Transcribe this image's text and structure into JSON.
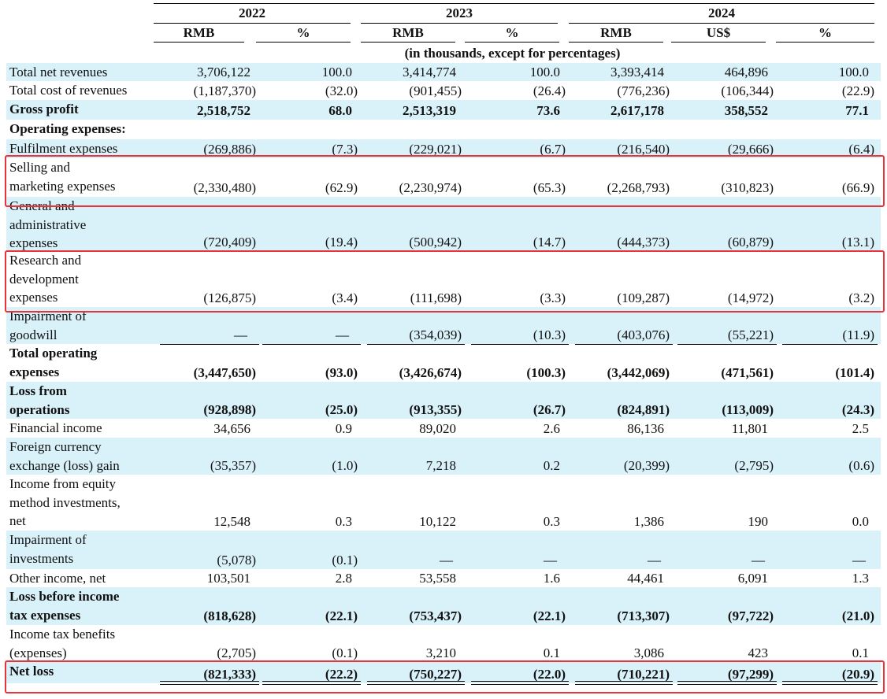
{
  "header": {
    "years": [
      "2022",
      "2023",
      "2024"
    ],
    "currency_row": [
      "RMB",
      "%",
      "RMB",
      "%",
      "RMB",
      "US$",
      "%"
    ],
    "units_note": "(in thousands, except for percentages)"
  },
  "columns": [
    "2022 RMB",
    "2022 %",
    "2023 RMB",
    "2023 %",
    "2024 RMB",
    "2024 US$",
    "2024 %"
  ],
  "rows": [
    {
      "label": "Total net revenues",
      "values": [
        "3,706,122",
        "100.0",
        "3,414,774",
        "100.0",
        "3,393,414",
        "464,896",
        "100.0"
      ]
    },
    {
      "label": "Total cost of revenues",
      "values": [
        "(1,187,370)",
        "(32.0)",
        "(901,455)",
        "(26.4)",
        "(776,236)",
        "(106,344)",
        "(22.9)"
      ]
    },
    {
      "label": "Gross profit",
      "values": [
        "2,518,752",
        "68.0",
        "2,513,319",
        "73.6",
        "2,617,178",
        "358,552",
        "77.1"
      ]
    },
    {
      "label": "Operating expenses:",
      "values": [
        "",
        "",
        "",
        "",
        "",
        "",
        ""
      ]
    },
    {
      "label": "Fulfilment expenses",
      "values": [
        "(269,886)",
        "(7.3)",
        "(229,021)",
        "(6.7)",
        "(216,540)",
        "(29,666)",
        "(6.4)"
      ]
    },
    {
      "label": "Selling and\nmarketing expenses",
      "values": [
        "(2,330,480)",
        "(62.9)",
        "(2,230,974)",
        "(65.3)",
        "(2,268,793)",
        "(310,823)",
        "(66.9)"
      ]
    },
    {
      "label": "General and\nadministrative\nexpenses",
      "values": [
        "(720,409)",
        "(19.4)",
        "(500,942)",
        "(14.7)",
        "(444,373)",
        "(60,879)",
        "(13.1)"
      ]
    },
    {
      "label": "Research and\ndevelopment\nexpenses",
      "values": [
        "(126,875)",
        "(3.4)",
        "(111,698)",
        "(3.3)",
        "(109,287)",
        "(14,972)",
        "(3.2)"
      ]
    },
    {
      "label": "Impairment of\ngoodwill",
      "values": [
        "—",
        "—",
        "(354,039)",
        "(10.3)",
        "(403,076)",
        "(55,221)",
        "(11.9)"
      ]
    },
    {
      "label": "Total operating\nexpenses",
      "values": [
        "(3,447,650)",
        "(93.0)",
        "(3,426,674)",
        "(100.3)",
        "(3,442,069)",
        "(471,561)",
        "(101.4)"
      ]
    },
    {
      "label": "Loss from\noperations",
      "values": [
        "(928,898)",
        "(25.0)",
        "(913,355)",
        "(26.7)",
        "(824,891)",
        "(113,009)",
        "(24.3)"
      ]
    },
    {
      "label": "Financial income",
      "values": [
        "34,656",
        "0.9",
        "89,020",
        "2.6",
        "86,136",
        "11,801",
        "2.5"
      ]
    },
    {
      "label": "Foreign currency\nexchange (loss) gain",
      "values": [
        "(35,357)",
        "(1.0)",
        "7,218",
        "0.2",
        "(20,399)",
        "(2,795)",
        "(0.6)"
      ]
    },
    {
      "label": "Income from equity\nmethod investments,\nnet",
      "values": [
        "12,548",
        "0.3",
        "10,122",
        "0.3",
        "1,386",
        "190",
        "0.0"
      ]
    },
    {
      "label": "Impairment of\ninvestments",
      "values": [
        "(5,078)",
        "(0.1)",
        "—",
        "—",
        "—",
        "—",
        "—"
      ]
    },
    {
      "label": "Other income, net",
      "values": [
        "103,501",
        "2.8",
        "53,558",
        "1.6",
        "44,461",
        "6,091",
        "1.3"
      ]
    },
    {
      "label": "Loss before income\ntax expenses",
      "values": [
        "(818,628)",
        "(22.1)",
        "(753,437)",
        "(22.1)",
        "(713,307)",
        "(97,722)",
        "(21.0)"
      ]
    },
    {
      "label": "Income tax benefits\n(expenses)",
      "values": [
        "(2,705)",
        "(0.1)",
        "3,210",
        "0.1",
        "3,086",
        "423",
        "0.1"
      ]
    },
    {
      "label": "Net loss",
      "values": [
        "(821,333)",
        "(22.2)",
        "(750,227)",
        "(22.0)",
        "(710,221)",
        "(97,299)",
        "(20.9)"
      ]
    }
  ],
  "highlight_color": "#e8333a",
  "shade_color": "#d9f1f9"
}
